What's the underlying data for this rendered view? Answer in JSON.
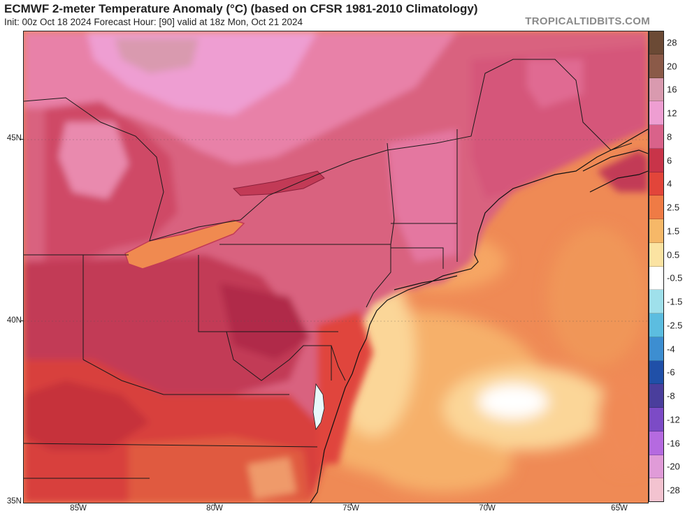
{
  "header": {
    "title": "ECMWF 2-meter Temperature Anomaly (°C) (based on CFSR 1981-2010 Climatology)",
    "subtitle": "Init: 00z Oct 18 2024   Forecast Hour: [90]   valid at 18z Mon, Oct 21 2024",
    "brand": "TROPICALTIDBITS.COM"
  },
  "axes": {
    "lat_labels": [
      "45N",
      "40N",
      "35N"
    ],
    "lon_labels": [
      "85W",
      "80W",
      "75W",
      "70W",
      "65W"
    ]
  },
  "legend": {
    "levels": [
      {
        "label": "28",
        "color": "#6b4a35"
      },
      {
        "label": "20",
        "color": "#8b5a48"
      },
      {
        "label": "16",
        "color": "#d99aaf"
      },
      {
        "label": "12",
        "color": "#ee9ed2"
      },
      {
        "label": "8",
        "color": "#d9628a"
      },
      {
        "label": "6",
        "color": "#c83449"
      },
      {
        "label": "4",
        "color": "#e2453a"
      },
      {
        "label": "2.5",
        "color": "#ef7b45"
      },
      {
        "label": "1.5",
        "color": "#f6b868"
      },
      {
        "label": "0.5",
        "color": "#fbe3a2"
      },
      {
        "label": "-0.5",
        "color": "#ffffff"
      },
      {
        "label": "-1.5",
        "color": "#9fe0eb"
      },
      {
        "label": "-2.5",
        "color": "#5cbde0"
      },
      {
        "label": "-4",
        "color": "#3d8ed1"
      },
      {
        "label": "-6",
        "color": "#2050a8"
      },
      {
        "label": "-8",
        "color": "#4a3e9c"
      },
      {
        "label": "-12",
        "color": "#7c4bc6"
      },
      {
        "label": "-16",
        "color": "#b56ae0"
      },
      {
        "label": "-20",
        "color": "#e09bd8"
      },
      {
        "label": "-28",
        "color": "#f3c3d0"
      }
    ]
  }
}
